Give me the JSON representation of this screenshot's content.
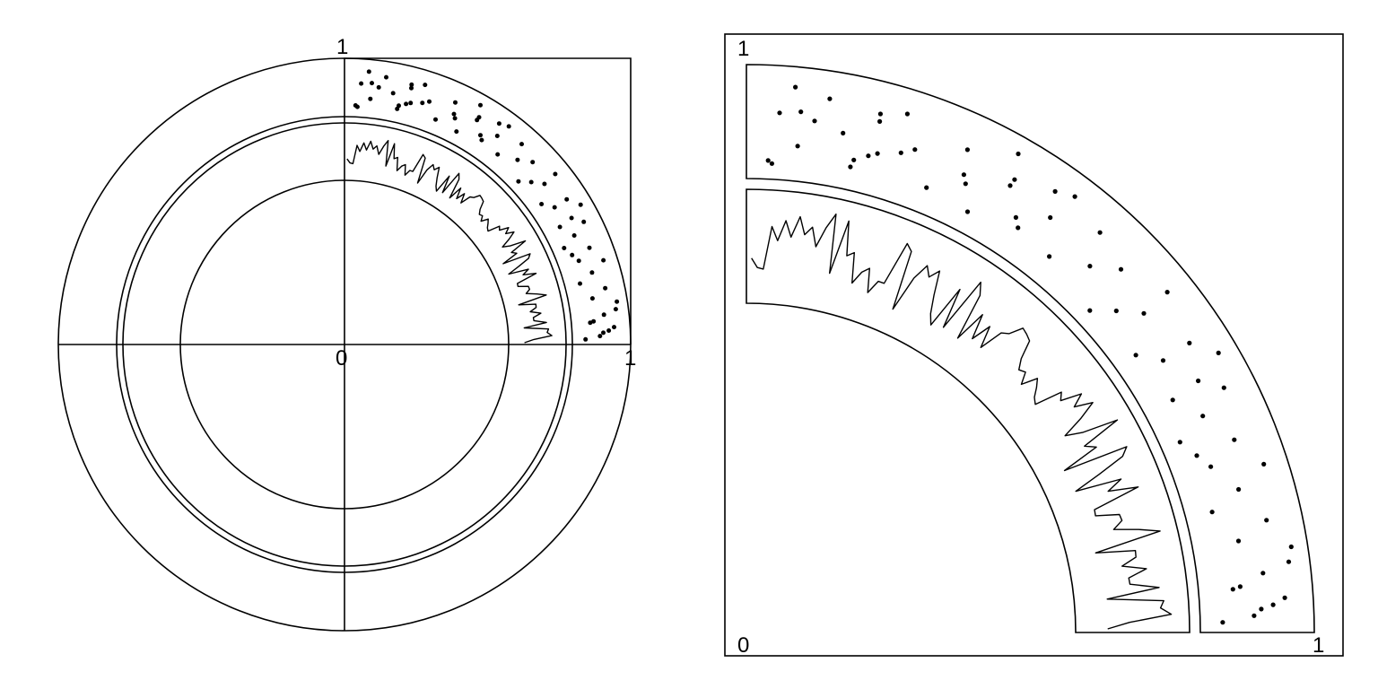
{
  "left_panel": {
    "label_top": "1",
    "label_origin": "0",
    "label_right": "1"
  },
  "right_panel": {
    "label_top": "1",
    "label_origin": "0",
    "label_right": "1"
  },
  "colors": {
    "ink": "#000000",
    "background": "#ffffff"
  },
  "seed": 20240601,
  "scatter_points": [
    [
      0.05,
      0.92
    ],
    [
      0.06,
      0.94
    ],
    [
      0.1,
      0.95
    ],
    [
      0.15,
      0.96
    ],
    [
      0.18,
      0.93
    ],
    [
      0.21,
      0.94
    ],
    [
      0.24,
      0.92
    ],
    [
      0.26,
      0.95
    ],
    [
      0.08,
      0.89
    ],
    [
      0.12,
      0.9
    ],
    [
      0.2,
      0.88
    ],
    [
      0.23,
      0.89
    ],
    [
      0.29,
      0.9
    ],
    [
      0.04,
      0.87
    ],
    [
      0.09,
      0.86
    ],
    [
      0.22,
      0.86
    ],
    [
      0.27,
      0.87
    ],
    [
      0.3,
      0.86
    ],
    [
      0.34,
      0.84
    ],
    [
      0.38,
      0.83
    ],
    [
      0.42,
      0.86
    ],
    [
      0.46,
      0.81
    ],
    [
      0.49,
      0.83
    ],
    [
      0.53,
      0.79
    ],
    [
      0.56,
      0.8
    ],
    [
      0.38,
      0.8
    ],
    [
      0.41,
      0.78
    ],
    [
      0.45,
      0.76
    ],
    [
      0.5,
      0.77
    ],
    [
      0.55,
      0.73
    ],
    [
      0.52,
      0.71
    ],
    [
      0.58,
      0.72
    ],
    [
      0.61,
      0.69
    ],
    [
      0.6,
      0.64
    ],
    [
      0.64,
      0.6
    ],
    [
      0.66,
      0.64
    ],
    [
      0.69,
      0.6
    ],
    [
      0.68,
      0.55
    ],
    [
      0.71,
      0.57
    ],
    [
      0.73,
      0.52
    ],
    [
      0.75,
      0.49
    ],
    [
      0.72,
      0.47
    ],
    [
      0.76,
      0.45
    ],
    [
      0.79,
      0.44
    ],
    [
      0.77,
      0.42
    ],
    [
      0.8,
      0.41
    ],
    [
      0.78,
      0.37
    ],
    [
      0.82,
      0.36
    ],
    [
      0.81,
      0.32
    ],
    [
      0.84,
      0.3
    ],
    [
      0.83,
      0.27
    ],
    [
      0.86,
      0.25
    ],
    [
      0.85,
      0.22
    ],
    [
      0.88,
      0.19
    ],
    [
      0.86,
      0.16
    ],
    [
      0.89,
      0.14
    ],
    [
      0.87,
      0.1
    ],
    [
      0.9,
      0.08
    ],
    [
      0.93,
      0.06
    ],
    [
      0.91,
      0.03
    ],
    [
      0.94,
      0.02
    ],
    [
      0.95,
      0.05
    ],
    [
      0.97,
      0.09
    ],
    [
      0.92,
      0.12
    ],
    [
      0.88,
      0.04
    ],
    [
      0.84,
      0.33
    ]
  ]
}
